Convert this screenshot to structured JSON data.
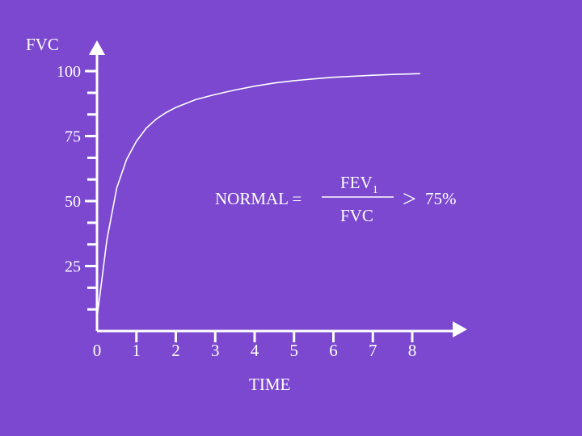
{
  "colors": {
    "background": "#7b48cf",
    "foreground": "#ffffff"
  },
  "chart_data": {
    "type": "line",
    "ylabel": "FVC",
    "xlabel": "TIME",
    "ylim": [
      0,
      100
    ],
    "xlim": [
      0,
      8
    ],
    "y_ticks_labeled": [
      "100",
      "75",
      "50",
      "25"
    ],
    "y_tick_values_labeled": [
      100,
      75,
      50,
      25
    ],
    "y_minor_step": 8.33,
    "x_ticks": [
      "0",
      "1",
      "2",
      "3",
      "4",
      "5",
      "6",
      "7",
      "8"
    ],
    "x_tick_values": [
      0,
      1,
      2,
      3,
      4,
      5,
      6,
      7,
      8
    ],
    "grid": false,
    "series": [
      {
        "x": [
          0,
          0.25,
          0.5,
          0.75,
          1,
          1.25,
          1.5,
          1.75,
          2,
          2.5,
          3,
          3.5,
          4,
          4.5,
          5,
          5.5,
          6,
          6.5,
          7,
          7.5,
          8.2
        ],
        "y": [
          5,
          35,
          55,
          66,
          73,
          78,
          81.5,
          84,
          86,
          89,
          91,
          92.7,
          94.2,
          95.4,
          96.3,
          97,
          97.6,
          98,
          98.4,
          98.7,
          99
        ]
      }
    ],
    "annotation": {
      "prefix": "NORMAL =",
      "numerator": "FEV",
      "numerator_sub": "1",
      "denominator": "FVC",
      "comparison": ">",
      "threshold": "75%"
    }
  }
}
